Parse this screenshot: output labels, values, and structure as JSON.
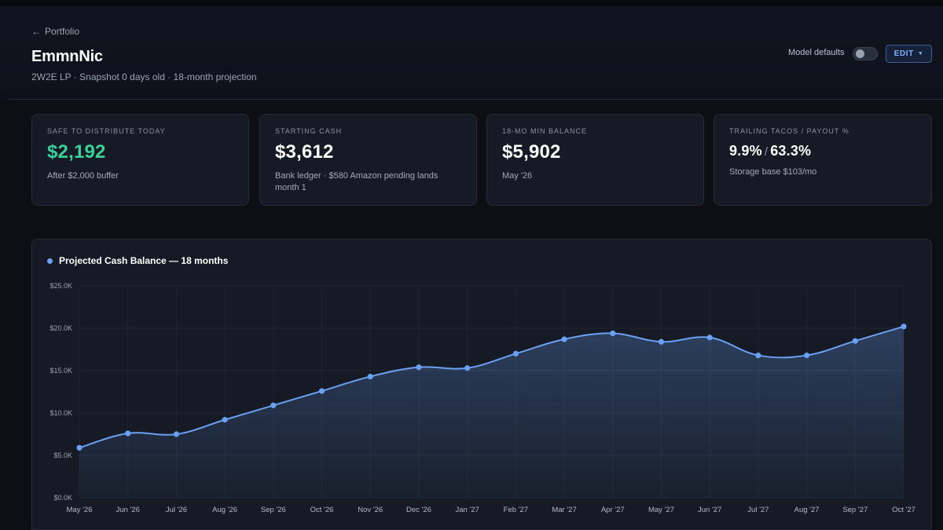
{
  "header": {
    "back_label": "Portfolio",
    "title": "EmmnNic",
    "subtitle": "2W2E LP · Snapshot 0 days old · 18-month projection",
    "model_defaults_label": "Model defaults",
    "model_defaults_on": false,
    "edit_label": "EDIT"
  },
  "cards": [
    {
      "label": "SAFE TO DISTRIBUTE TODAY",
      "value": "$2,192",
      "sub": "After $2,000 buffer"
    },
    {
      "label": "STARTING CASH",
      "value": "$3,612",
      "sub": "Bank ledger · $580 Amazon pending lands month 1"
    },
    {
      "label": "18-MO MIN BALANCE",
      "value": "$5,902",
      "sub": "May '26"
    },
    {
      "label": "TRAILING TACOS / PAYOUT %",
      "value_a": "9.9%",
      "value_sep": "/",
      "value_b": "63.3%",
      "sub": "Storage base $103/mo"
    }
  ],
  "colors": {
    "accent": "#6aa1f5",
    "positive": "#35d399",
    "background": "#0d0f14",
    "card": "#151a24"
  },
  "chart_data": {
    "type": "area",
    "title": "Projected Cash Balance — 18 months",
    "x": [
      "May '26",
      "Jun '26",
      "Jul '26",
      "Aug '26",
      "Sep '26",
      "Oct '26",
      "Nov '26",
      "Dec '26",
      "Jan '27",
      "Feb '27",
      "Mar '27",
      "Apr '27",
      "May '27",
      "Jun '27",
      "Jul '27",
      "Aug '27",
      "Sep '27",
      "Oct '27"
    ],
    "series": [
      {
        "values": [
          5900,
          7600,
          7500,
          9200,
          10900,
          12600,
          14300,
          15400,
          15300,
          17000,
          18700,
          19400,
          18400,
          18900,
          16800,
          16800,
          18500,
          20200
        ]
      }
    ],
    "ylim": [
      0,
      25000
    ],
    "yticks": [
      "$0.0K",
      "$5.0K",
      "$10.0K",
      "$15.0K",
      "$20.0K",
      "$25.0K"
    ],
    "grid": true,
    "line_color": "#6aa1f5"
  }
}
